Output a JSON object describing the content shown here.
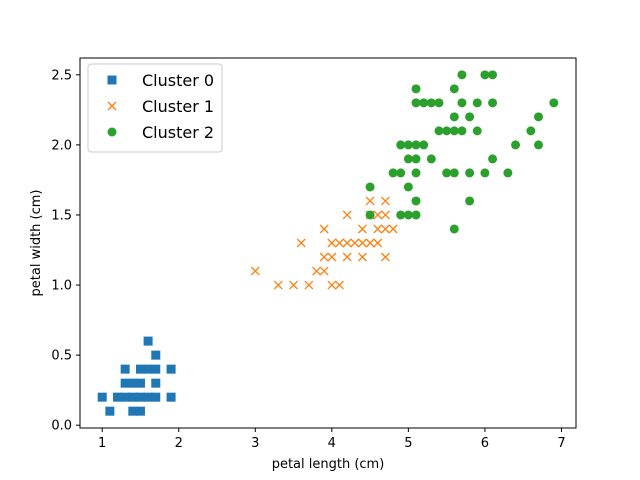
{
  "chart_data": {
    "type": "scatter",
    "xlabel": "petal length (cm)",
    "ylabel": "petal width (cm)",
    "xlim": [
      0.71,
      7.19
    ],
    "ylim": [
      -0.02,
      2.62
    ],
    "xticks": [
      1,
      2,
      3,
      4,
      5,
      6,
      7
    ],
    "yticks": [
      0.0,
      0.5,
      1.0,
      1.5,
      2.0,
      2.5
    ],
    "xtick_labels": [
      "1",
      "2",
      "3",
      "4",
      "5",
      "6",
      "7"
    ],
    "ytick_labels": [
      "0.0",
      "0.5",
      "1.0",
      "1.5",
      "2.0",
      "2.5"
    ],
    "grid": false,
    "legend_position": "top-left",
    "series": [
      {
        "name": "Cluster 0",
        "marker": "square",
        "color": "#1f77b4",
        "points": [
          [
            1.0,
            0.2
          ],
          [
            1.1,
            0.1
          ],
          [
            1.2,
            0.2
          ],
          [
            1.3,
            0.2
          ],
          [
            1.3,
            0.3
          ],
          [
            1.3,
            0.4
          ],
          [
            1.4,
            0.1
          ],
          [
            1.4,
            0.2
          ],
          [
            1.4,
            0.3
          ],
          [
            1.5,
            0.1
          ],
          [
            1.5,
            0.2
          ],
          [
            1.5,
            0.3
          ],
          [
            1.5,
            0.4
          ],
          [
            1.6,
            0.2
          ],
          [
            1.6,
            0.4
          ],
          [
            1.6,
            0.6
          ],
          [
            1.7,
            0.2
          ],
          [
            1.7,
            0.3
          ],
          [
            1.7,
            0.4
          ],
          [
            1.7,
            0.5
          ],
          [
            1.9,
            0.2
          ],
          [
            1.9,
            0.4
          ]
        ]
      },
      {
        "name": "Cluster 1",
        "marker": "x",
        "color": "#ff7f0e",
        "points": [
          [
            3.0,
            1.1
          ],
          [
            3.3,
            1.0
          ],
          [
            3.5,
            1.0
          ],
          [
            3.6,
            1.3
          ],
          [
            3.7,
            1.0
          ],
          [
            3.8,
            1.1
          ],
          [
            3.9,
            1.1
          ],
          [
            3.9,
            1.2
          ],
          [
            3.9,
            1.4
          ],
          [
            4.0,
            1.0
          ],
          [
            4.0,
            1.2
          ],
          [
            4.0,
            1.3
          ],
          [
            4.1,
            1.0
          ],
          [
            4.1,
            1.3
          ],
          [
            4.2,
            1.2
          ],
          [
            4.2,
            1.3
          ],
          [
            4.2,
            1.5
          ],
          [
            4.3,
            1.3
          ],
          [
            4.4,
            1.2
          ],
          [
            4.4,
            1.3
          ],
          [
            4.4,
            1.4
          ],
          [
            4.5,
            1.3
          ],
          [
            4.5,
            1.5
          ],
          [
            4.5,
            1.6
          ],
          [
            4.6,
            1.3
          ],
          [
            4.6,
            1.4
          ],
          [
            4.6,
            1.5
          ],
          [
            4.7,
            1.2
          ],
          [
            4.7,
            1.4
          ],
          [
            4.7,
            1.5
          ],
          [
            4.7,
            1.6
          ],
          [
            4.8,
            1.4
          ]
        ]
      },
      {
        "name": "Cluster 2",
        "marker": "circle",
        "color": "#2ca02c",
        "points": [
          [
            4.5,
            1.5
          ],
          [
            4.5,
            1.7
          ],
          [
            4.8,
            1.8
          ],
          [
            4.9,
            1.5
          ],
          [
            4.9,
            1.8
          ],
          [
            4.9,
            2.0
          ],
          [
            5.0,
            1.5
          ],
          [
            5.0,
            1.7
          ],
          [
            5.0,
            1.9
          ],
          [
            5.0,
            2.0
          ],
          [
            5.1,
            1.5
          ],
          [
            5.1,
            1.6
          ],
          [
            5.1,
            1.8
          ],
          [
            5.1,
            1.9
          ],
          [
            5.1,
            2.0
          ],
          [
            5.1,
            2.3
          ],
          [
            5.1,
            2.4
          ],
          [
            5.2,
            2.0
          ],
          [
            5.2,
            2.3
          ],
          [
            5.3,
            1.9
          ],
          [
            5.3,
            2.3
          ],
          [
            5.4,
            2.1
          ],
          [
            5.4,
            2.3
          ],
          [
            5.5,
            1.8
          ],
          [
            5.5,
            2.1
          ],
          [
            5.6,
            1.4
          ],
          [
            5.6,
            1.8
          ],
          [
            5.6,
            2.1
          ],
          [
            5.6,
            2.2
          ],
          [
            5.6,
            2.4
          ],
          [
            5.7,
            2.1
          ],
          [
            5.7,
            2.3
          ],
          [
            5.7,
            2.5
          ],
          [
            5.8,
            1.6
          ],
          [
            5.8,
            1.8
          ],
          [
            5.8,
            2.2
          ],
          [
            5.9,
            2.1
          ],
          [
            5.9,
            2.3
          ],
          [
            6.0,
            1.8
          ],
          [
            6.0,
            2.5
          ],
          [
            6.1,
            1.9
          ],
          [
            6.1,
            2.3
          ],
          [
            6.1,
            2.5
          ],
          [
            6.3,
            1.8
          ],
          [
            6.4,
            2.0
          ],
          [
            6.6,
            2.1
          ],
          [
            6.7,
            2.0
          ],
          [
            6.7,
            2.2
          ],
          [
            6.9,
            2.3
          ]
        ]
      }
    ]
  }
}
